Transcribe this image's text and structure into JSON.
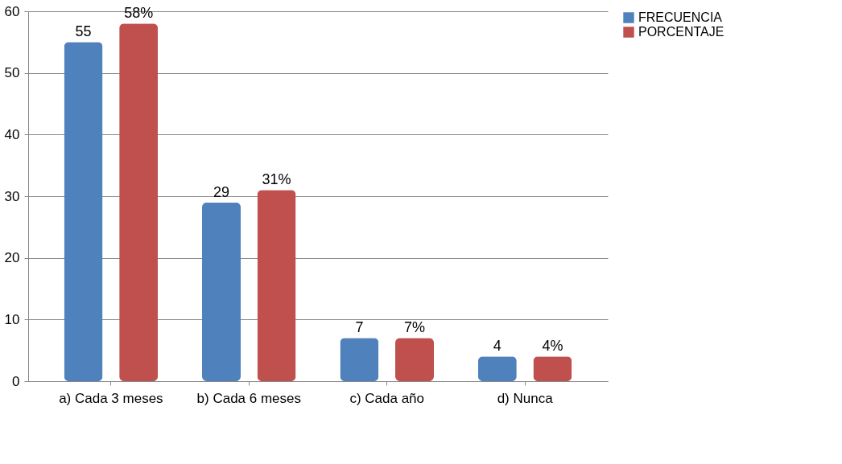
{
  "chart_data": {
    "type": "bar",
    "categories": [
      "a) Cada 3 meses",
      "b) Cada 6 meses",
      "c) Cada año",
      "d) Nunca"
    ],
    "series": [
      {
        "name": "FRECUENCIA",
        "color": "#4f81bd",
        "values": [
          55,
          29,
          7,
          4
        ],
        "value_labels": [
          "55",
          "29",
          "7",
          "4"
        ]
      },
      {
        "name": "PORCENTAJE",
        "color": "#c0504d",
        "values": [
          58,
          31,
          7,
          4
        ],
        "value_labels": [
          "58%",
          "31%",
          "7%",
          "4%"
        ]
      }
    ],
    "ylim": [
      0,
      60
    ],
    "yticks": [
      0,
      10,
      20,
      30,
      40,
      50,
      60
    ],
    "grid": "y",
    "legend": "right"
  }
}
